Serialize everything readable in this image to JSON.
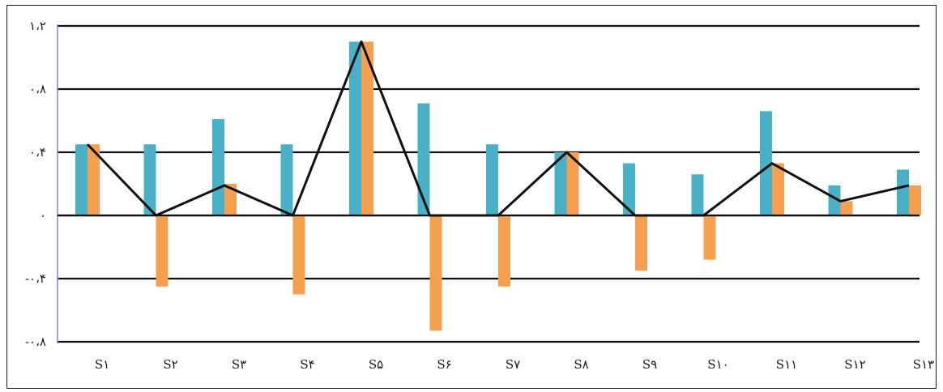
{
  "chart_data": {
    "type": "bar",
    "categories": [
      "S۱",
      "S۲",
      "S۳",
      "S۴",
      "S۵",
      "S۶",
      "S۷",
      "S۸",
      "S۹",
      "S۱۰",
      "S۱۱",
      "S۱۲",
      "S۱۳"
    ],
    "y_tick_labels": [
      "۱،۲",
      "۰،۸",
      "۰،۴",
      "۰",
      "-۰،۴",
      "-۰،۸"
    ],
    "y_tick_values": [
      1.2,
      0.8,
      0.4,
      0,
      -0.4,
      -0.8
    ],
    "ylim": [
      -0.8,
      1.2
    ],
    "grid": true,
    "bar_groups": [
      {
        "blue": 0.45,
        "orange": 0.45
      },
      {
        "blue": 0.45,
        "orange": -0.45
      },
      {
        "blue": 0.61,
        "orange": 0.2
      },
      {
        "blue": 0.45,
        "orange": -0.5
      },
      {
        "blue": 1.1,
        "orange": 1.1
      },
      {
        "blue": 0.71,
        "orange": -0.73
      },
      {
        "blue": 0.45,
        "orange": -0.45
      },
      {
        "blue": 0.4,
        "orange": 0.4
      },
      {
        "blue": 0.33,
        "orange": -0.35
      },
      {
        "blue": 0.26,
        "orange": -0.28
      },
      {
        "blue": 0.66,
        "orange": 0.33
      },
      {
        "blue": 0.19,
        "orange": 0.09
      },
      {
        "blue": 0.29,
        "orange": 0.19
      }
    ],
    "line_points": [
      {
        "category": "S۱",
        "value": 0.45
      },
      {
        "category": "S۲",
        "value": 0.0
      },
      {
        "category": "S۳",
        "value": 0.19
      },
      {
        "category": "S۴",
        "value": 0.0
      },
      {
        "category": "S۵",
        "value": 1.1
      },
      {
        "category": "S۶",
        "value": 0.0
      },
      {
        "category": "S۷",
        "value": 0.0
      },
      {
        "category": "S۸",
        "value": 0.4
      },
      {
        "category": "S۹",
        "value": 0.0
      },
      {
        "category": "S۱۰",
        "value": 0.0
      },
      {
        "category": "S۱۱",
        "value": 0.33
      },
      {
        "category": "S۱۲",
        "value": 0.09
      },
      {
        "category": "S۱۳",
        "value": 0.19
      }
    ],
    "colors": {
      "blue": "#4ab0c8",
      "orange": "#f5a050",
      "line": "#111111",
      "grid": "#111111",
      "y_axis": "#8a7fd0"
    }
  }
}
